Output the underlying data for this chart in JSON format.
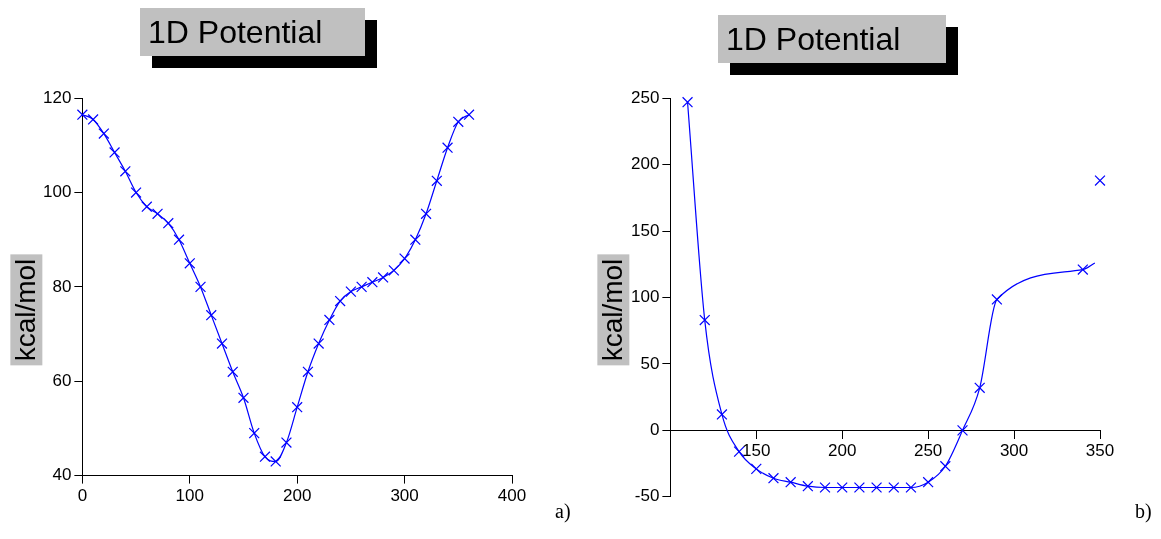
{
  "chart_data": [
    {
      "type": "line",
      "title": "1D Potential",
      "ylabel": "kcal/mol",
      "annotations": [
        "a)"
      ],
      "marker": "cross",
      "grid": false,
      "legend": false,
      "xlim": [
        0,
        400
      ],
      "xticks": [
        0,
        100,
        200,
        300,
        400
      ],
      "ylim": [
        40,
        120
      ],
      "yticks": [
        40,
        60,
        80,
        100,
        120
      ],
      "x": [
        0,
        10,
        20,
        30,
        40,
        50,
        60,
        70,
        80,
        90,
        100,
        110,
        120,
        130,
        140,
        150,
        160,
        170,
        180,
        190,
        200,
        210,
        220,
        230,
        240,
        250,
        260,
        270,
        280,
        290,
        300,
        310,
        320,
        330,
        340,
        350,
        360
      ],
      "series": [
        {
          "color": "#0000ff",
          "values": [
            116.5,
            115.5,
            112.5,
            108.5,
            104.5,
            100,
            97,
            95.5,
            93.5,
            90,
            85,
            80,
            74,
            68,
            62,
            56.5,
            49,
            44,
            43,
            47,
            54.5,
            62,
            68,
            73,
            77,
            79,
            80,
            81,
            82,
            83.5,
            86,
            90,
            95.5,
            102.5,
            109.5,
            115,
            116.5
          ]
        }
      ]
    },
    {
      "type": "scatter",
      "title": "1D Potential",
      "ylabel": "kcal/mol",
      "annotations": [
        "b)"
      ],
      "marker": "cross",
      "grid": false,
      "legend": false,
      "xlim": [
        100,
        350
      ],
      "xticks": [
        150,
        200,
        250,
        300,
        350
      ],
      "ylim": [
        -50,
        250
      ],
      "yticks": [
        -50,
        0,
        50,
        100,
        150,
        200,
        250
      ],
      "x": [
        110,
        120,
        130,
        140,
        150,
        160,
        170,
        180,
        190,
        200,
        210,
        220,
        230,
        240,
        250,
        260,
        270,
        280,
        290,
        340,
        350
      ],
      "series": [
        {
          "color": "#0000ff",
          "values": [
            247,
            83,
            12,
            -16,
            -29,
            -36,
            -39,
            -42,
            -43,
            -43,
            -43,
            -43,
            -43,
            -43,
            -39,
            -27,
            0,
            32,
            98.5,
            121,
            188
          ]
        },
        {
          "type": "line",
          "marker": "none",
          "color": "#0000ff",
          "x": [
            110,
            120,
            130,
            140,
            150,
            160,
            170,
            180,
            190,
            200,
            210,
            220,
            230,
            240,
            250,
            260,
            270,
            280,
            290,
            340,
            347
          ],
          "values": [
            247,
            83,
            12,
            -16,
            -29,
            -36,
            -39,
            -42,
            -43,
            -43,
            -43,
            -43,
            -43,
            -43,
            -39,
            -27,
            0,
            32,
            98.5,
            121,
            126
          ]
        }
      ]
    }
  ]
}
